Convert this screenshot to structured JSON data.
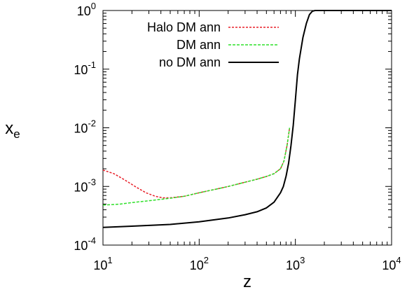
{
  "chart_data": {
    "type": "line",
    "title": "",
    "xlabel": "z",
    "ylabel": "x",
    "ylabel_subscript": "e",
    "xscale": "log",
    "yscale": "log",
    "xlim": [
      10,
      10000
    ],
    "ylim": [
      0.0001,
      1
    ],
    "grid": false,
    "legend_position": "top-left",
    "x_ticks": [
      {
        "value": 10,
        "base": "10",
        "exp": "1"
      },
      {
        "value": 100,
        "base": "10",
        "exp": "2"
      },
      {
        "value": 1000,
        "base": "10",
        "exp": "3"
      },
      {
        "value": 10000,
        "base": "10",
        "exp": "4"
      }
    ],
    "y_ticks": [
      {
        "value": 0.0001,
        "base": "10",
        "exp": "-4"
      },
      {
        "value": 0.001,
        "base": "10",
        "exp": "-3"
      },
      {
        "value": 0.01,
        "base": "10",
        "exp": "-2"
      },
      {
        "value": 0.1,
        "base": "10",
        "exp": "-1"
      },
      {
        "value": 1,
        "base": "10",
        "exp": "0"
      }
    ],
    "series": [
      {
        "name": "Halo DM ann",
        "color": "#e8202a",
        "dash": "dense-dashed",
        "points": [
          [
            10,
            0.0019
          ],
          [
            13,
            0.00165
          ],
          [
            17,
            0.00128
          ],
          [
            22,
            0.00098
          ],
          [
            28,
            0.00078
          ],
          [
            35,
            0.00068
          ],
          [
            42,
            0.00064
          ],
          [
            50,
            0.00064
          ],
          [
            70,
            0.00068
          ],
          [
            100,
            0.00078
          ],
          [
            150,
            0.0009
          ],
          [
            200,
            0.001
          ],
          [
            300,
            0.00118
          ],
          [
            400,
            0.00133
          ],
          [
            500,
            0.00148
          ],
          [
            600,
            0.00165
          ],
          [
            700,
            0.002
          ],
          [
            760,
            0.0027
          ],
          [
            820,
            0.005
          ],
          [
            870,
            0.01
          ]
        ]
      },
      {
        "name": "DM ann",
        "color": "#2fe02a",
        "dash": "dashed",
        "points": [
          [
            10,
            0.00048
          ],
          [
            15,
            0.0005
          ],
          [
            20,
            0.00053
          ],
          [
            30,
            0.00057
          ],
          [
            50,
            0.00063
          ],
          [
            70,
            0.00068
          ],
          [
            100,
            0.00078
          ],
          [
            150,
            0.0009
          ],
          [
            200,
            0.001
          ],
          [
            300,
            0.00118
          ],
          [
            400,
            0.00133
          ],
          [
            500,
            0.00148
          ],
          [
            600,
            0.00165
          ],
          [
            700,
            0.002
          ],
          [
            760,
            0.0027
          ],
          [
            820,
            0.005
          ],
          [
            870,
            0.01
          ]
        ]
      },
      {
        "name": "no DM ann",
        "color": "#000000",
        "dash": "solid",
        "points": [
          [
            10,
            0.0002
          ],
          [
            20,
            0.00021
          ],
          [
            50,
            0.000225
          ],
          [
            100,
            0.00025
          ],
          [
            200,
            0.00029
          ],
          [
            300,
            0.00033
          ],
          [
            400,
            0.00037
          ],
          [
            500,
            0.00043
          ],
          [
            600,
            0.00054
          ],
          [
            700,
            0.00078
          ],
          [
            750,
            0.001
          ],
          [
            800,
            0.0015
          ],
          [
            850,
            0.0025
          ],
          [
            900,
            0.005
          ],
          [
            950,
            0.011
          ],
          [
            1000,
            0.03
          ],
          [
            1050,
            0.08
          ],
          [
            1100,
            0.15
          ],
          [
            1200,
            0.35
          ],
          [
            1300,
            0.6
          ],
          [
            1400,
            0.85
          ],
          [
            1500,
            0.97
          ],
          [
            1600,
            1.0
          ],
          [
            10000,
            1.0
          ]
        ]
      }
    ]
  }
}
